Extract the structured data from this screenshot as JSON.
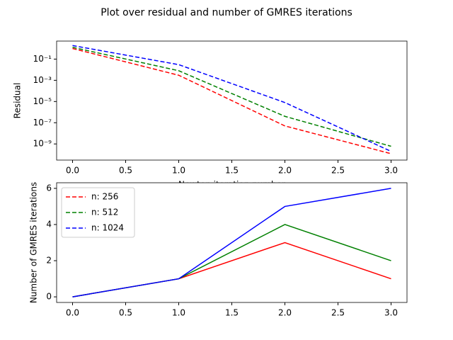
{
  "title": "Plot over residual and number of GMRES iterations",
  "chart_data": [
    {
      "type": "line",
      "scale_y": "log",
      "x_label": "Newton iteration number",
      "y_label": "Residual",
      "linestyle": "dashed",
      "x": [
        0,
        1,
        2,
        3
      ],
      "series": [
        {
          "color": "#ff0000",
          "values": [
            1.0,
            0.003,
            5e-08,
            1.2e-10
          ]
        },
        {
          "color": "#008000",
          "values": [
            1.3,
            0.008,
            4e-07,
            6e-10
          ]
        },
        {
          "color": "#0000ff",
          "values": [
            1.9,
            0.03,
            8e-06,
            2e-10
          ]
        }
      ],
      "xlim": [
        -0.15,
        3.15
      ],
      "xticks": [
        {
          "value": 0,
          "label": "0.0"
        },
        {
          "value": 0.5,
          "label": "0.5"
        },
        {
          "value": 1,
          "label": "1.0"
        },
        {
          "value": 1.5,
          "label": "1.5"
        },
        {
          "value": 2,
          "label": "2.0"
        },
        {
          "value": 2.5,
          "label": "2.5"
        },
        {
          "value": 3,
          "label": "3.0"
        }
      ],
      "ylim": [
        3e-11,
        5
      ],
      "yticks": [
        {
          "value": 0.1,
          "label": "10⁻¹"
        },
        {
          "value": 0.001,
          "label": "10⁻³"
        },
        {
          "value": 1e-05,
          "label": "10⁻⁵"
        },
        {
          "value": 1e-07,
          "label": "10⁻⁷"
        },
        {
          "value": 1e-09,
          "label": "10⁻⁹"
        }
      ]
    },
    {
      "type": "line",
      "y_label": "Number of GMRES iterations",
      "linestyle": "solid",
      "legend": "upper left",
      "legend_linestyle": "dashed",
      "x": [
        0,
        1,
        2,
        3
      ],
      "series": [
        {
          "name": "n: 256",
          "color": "#ff0000",
          "values": [
            0,
            1,
            3,
            1
          ]
        },
        {
          "name": "n: 512",
          "color": "#008000",
          "values": [
            0,
            1,
            4,
            2
          ]
        },
        {
          "name": "n: 1024",
          "color": "#0000ff",
          "values": [
            0,
            1,
            5,
            6
          ]
        }
      ],
      "xlim": [
        -0.15,
        3.15
      ],
      "xticks": [
        {
          "value": 0,
          "label": "0.0"
        },
        {
          "value": 0.5,
          "label": "0.5"
        },
        {
          "value": 1,
          "label": "1.0"
        },
        {
          "value": 1.5,
          "label": "1.5"
        },
        {
          "value": 2,
          "label": "2.0"
        },
        {
          "value": 2.5,
          "label": "2.5"
        },
        {
          "value": 3,
          "label": "3.0"
        }
      ],
      "ylim": [
        -0.31,
        6.31
      ],
      "yticks": [
        0,
        2,
        4,
        6
      ]
    }
  ]
}
